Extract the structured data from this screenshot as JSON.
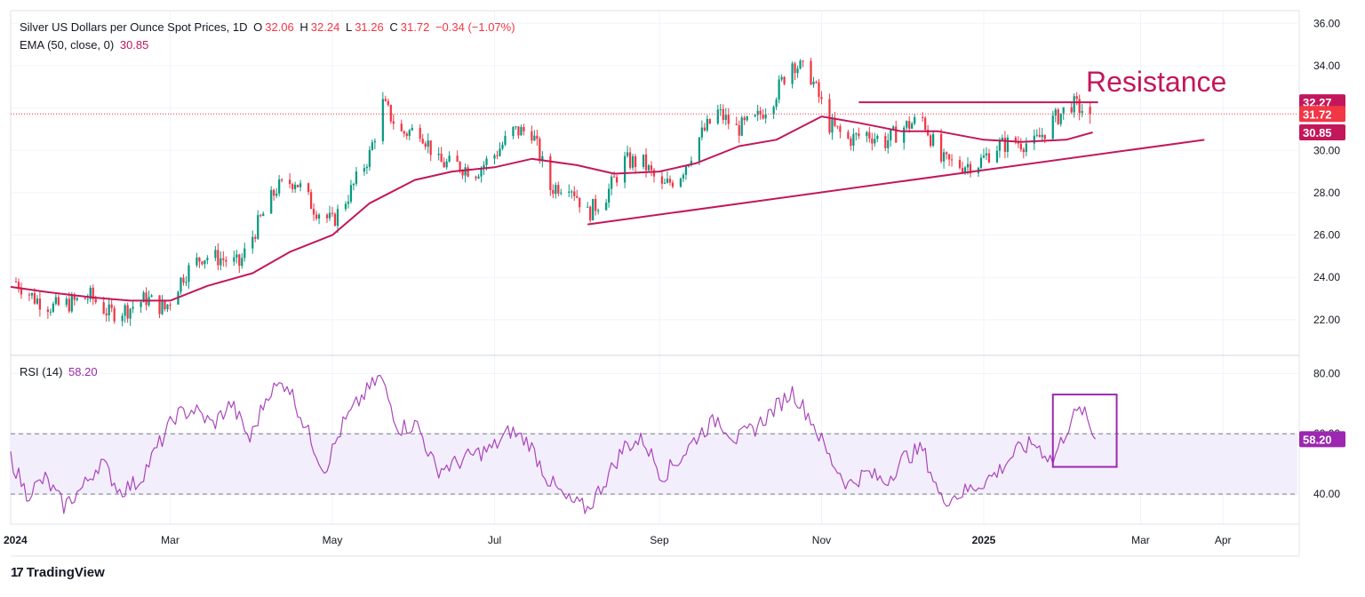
{
  "header": {
    "symbol": "Silver US Dollars per Ounce Spot Prices, 1D",
    "open_label": "O",
    "open": "32.06",
    "high_label": "H",
    "high": "32.24",
    "low_label": "L",
    "low": "31.26",
    "close_label": "C",
    "close": "31.72",
    "change": "−0.34 (−1.07%)",
    "ema_label": "EMA (50, close, 0)",
    "ema_value": "30.85"
  },
  "rsi_legend": {
    "label": "RSI (14)",
    "value": "58.20"
  },
  "annotation": {
    "resistance_label": "Resistance"
  },
  "price_badges": {
    "resistance": "32.27",
    "last": "31.72",
    "ema": "30.85",
    "rsi": "58.20"
  },
  "brand": {
    "name": "TradingView",
    "logo_icon": "tradingview-logo-icon"
  },
  "colors": {
    "up": "#089981",
    "down": "#f23645",
    "ema": "#c2185b",
    "rsi": "#9c27b0",
    "rsi_band": "#f3eefc",
    "grid": "#f0f3fa",
    "axis_text": "#131722"
  },
  "chart_data": [
    {
      "type": "candlestick",
      "title": "Silver US Dollars per Ounce Spot Prices, 1D",
      "ylim": [
        20.4,
        36.6
      ],
      "y_ticks": [
        "22.00",
        "24.00",
        "26.00",
        "28.00",
        "30.00",
        "32.00",
        "34.00",
        "36.00"
      ],
      "x_ticks": [
        "2024",
        "Mar",
        "May",
        "Jul",
        "Sep",
        "Nov",
        "2025",
        "Mar",
        "Apr"
      ],
      "x_tick_dates": [
        "2024-01-01",
        "2024-03-01",
        "2024-05-01",
        "2024-07-01",
        "2024-09-01",
        "2024-11-01",
        "2025-01-01",
        "2025-03-01",
        "2025-04-01"
      ],
      "x_range": [
        "2024-01-01",
        "2025-04-29"
      ],
      "grid": true,
      "series_close": [
        [
          "2024-01-03",
          23.8
        ],
        [
          "2024-01-10",
          23.0
        ],
        [
          "2024-01-17",
          22.6
        ],
        [
          "2024-01-24",
          22.8
        ],
        [
          "2024-01-31",
          23.1
        ],
        [
          "2024-02-07",
          22.3
        ],
        [
          "2024-02-14",
          22.5
        ],
        [
          "2024-02-21",
          23.0
        ],
        [
          "2024-02-28",
          22.5
        ],
        [
          "2024-03-06",
          24.1
        ],
        [
          "2024-03-13",
          25.0
        ],
        [
          "2024-03-20",
          24.9
        ],
        [
          "2024-03-27",
          24.6
        ],
        [
          "2024-04-03",
          26.5
        ],
        [
          "2024-04-10",
          28.2
        ],
        [
          "2024-04-17",
          28.6
        ],
        [
          "2024-04-24",
          27.3
        ],
        [
          "2024-05-01",
          26.6
        ],
        [
          "2024-05-08",
          28.1
        ],
        [
          "2024-05-15",
          29.8
        ],
        [
          "2024-05-20",
          32.2
        ],
        [
          "2024-05-27",
          30.8
        ],
        [
          "2024-06-03",
          31.0
        ],
        [
          "2024-06-10",
          29.4
        ],
        [
          "2024-06-17",
          29.3
        ],
        [
          "2024-06-24",
          29.0
        ],
        [
          "2024-07-01",
          29.8
        ],
        [
          "2024-07-08",
          30.9
        ],
        [
          "2024-07-15",
          30.9
        ],
        [
          "2024-07-22",
          28.2
        ],
        [
          "2024-07-29",
          28.5
        ],
        [
          "2024-08-05",
          27.0
        ],
        [
          "2024-08-12",
          27.9
        ],
        [
          "2024-08-19",
          29.5
        ],
        [
          "2024-08-26",
          29.4
        ],
        [
          "2024-09-02",
          28.2
        ],
        [
          "2024-09-09",
          28.9
        ],
        [
          "2024-09-16",
          30.6
        ],
        [
          "2024-09-23",
          31.8
        ],
        [
          "2024-09-30",
          31.0
        ],
        [
          "2024-10-07",
          31.4
        ],
        [
          "2024-10-14",
          32.5
        ],
        [
          "2024-10-21",
          34.2
        ],
        [
          "2024-10-28",
          33.5
        ],
        [
          "2024-11-04",
          31.2
        ],
        [
          "2024-11-11",
          30.5
        ],
        [
          "2024-11-18",
          30.8
        ],
        [
          "2024-11-25",
          30.4
        ],
        [
          "2024-12-02",
          31.1
        ],
        [
          "2024-12-09",
          31.5
        ],
        [
          "2024-12-16",
          29.5
        ],
        [
          "2024-12-23",
          29.3
        ],
        [
          "2024-12-30",
          29.4
        ],
        [
          "2025-01-06",
          30.2
        ],
        [
          "2025-01-13",
          30.4
        ],
        [
          "2025-01-20",
          30.3
        ],
        [
          "2025-01-27",
          31.4
        ],
        [
          "2025-02-03",
          32.2
        ],
        [
          "2025-02-10",
          31.72
        ]
      ],
      "ema_50": [
        [
          "2024-01-01",
          23.55
        ],
        [
          "2024-01-15",
          23.3
        ],
        [
          "2024-02-01",
          23.05
        ],
        [
          "2024-02-15",
          22.9
        ],
        [
          "2024-03-01",
          22.9
        ],
        [
          "2024-03-15",
          23.6
        ],
        [
          "2024-04-01",
          24.2
        ],
        [
          "2024-04-15",
          25.2
        ],
        [
          "2024-05-01",
          26.0
        ],
        [
          "2024-05-15",
          27.5
        ],
        [
          "2024-06-01",
          28.6
        ],
        [
          "2024-06-15",
          29.0
        ],
        [
          "2024-07-01",
          29.2
        ],
        [
          "2024-07-15",
          29.6
        ],
        [
          "2024-08-01",
          29.3
        ],
        [
          "2024-08-15",
          28.9
        ],
        [
          "2024-09-01",
          29.0
        ],
        [
          "2024-09-15",
          29.4
        ],
        [
          "2024-10-01",
          30.2
        ],
        [
          "2024-10-15",
          30.5
        ],
        [
          "2024-11-01",
          31.6
        ],
        [
          "2024-11-15",
          31.3
        ],
        [
          "2024-12-01",
          30.9
        ],
        [
          "2024-12-15",
          30.9
        ],
        [
          "2025-01-01",
          30.5
        ],
        [
          "2025-01-15",
          30.4
        ],
        [
          "2025-02-01",
          30.5
        ],
        [
          "2025-02-11",
          30.85
        ]
      ],
      "resistance_level": 32.27,
      "resistance_range": [
        "2024-11-15",
        "2025-02-13"
      ],
      "support_trendline": [
        [
          "2024-08-05",
          26.5
        ],
        [
          "2025-03-25",
          30.5
        ]
      ],
      "last_price": 31.72
    },
    {
      "type": "line",
      "title": "RSI (14)",
      "ylim": [
        30,
        86
      ],
      "y_ticks": [
        "40.00",
        "60.00",
        "80.00"
      ],
      "band": [
        40,
        60
      ],
      "rsi": [
        [
          "2024-01-01",
          52
        ],
        [
          "2024-01-07",
          40
        ],
        [
          "2024-01-14",
          45
        ],
        [
          "2024-01-21",
          36
        ],
        [
          "2024-01-28",
          42
        ],
        [
          "2024-02-04",
          51
        ],
        [
          "2024-02-11",
          41
        ],
        [
          "2024-02-18",
          44
        ],
        [
          "2024-02-25",
          55
        ],
        [
          "2024-03-03",
          66
        ],
        [
          "2024-03-10",
          68
        ],
        [
          "2024-03-17",
          63
        ],
        [
          "2024-03-24",
          70
        ],
        [
          "2024-03-31",
          58
        ],
        [
          "2024-04-07",
          74
        ],
        [
          "2024-04-14",
          77
        ],
        [
          "2024-04-21",
          62
        ],
        [
          "2024-04-28",
          48
        ],
        [
          "2024-05-05",
          63
        ],
        [
          "2024-05-12",
          72
        ],
        [
          "2024-05-19",
          79
        ],
        [
          "2024-05-26",
          62
        ],
        [
          "2024-06-02",
          63
        ],
        [
          "2024-06-09",
          48
        ],
        [
          "2024-06-16",
          50
        ],
        [
          "2024-06-23",
          53
        ],
        [
          "2024-06-30",
          55
        ],
        [
          "2024-07-07",
          61
        ],
        [
          "2024-07-14",
          57
        ],
        [
          "2024-07-21",
          45
        ],
        [
          "2024-07-28",
          38
        ],
        [
          "2024-08-05",
          35
        ],
        [
          "2024-08-12",
          45
        ],
        [
          "2024-08-19",
          56
        ],
        [
          "2024-08-26",
          58
        ],
        [
          "2024-09-02",
          46
        ],
        [
          "2024-09-09",
          52
        ],
        [
          "2024-09-16",
          60
        ],
        [
          "2024-09-23",
          65
        ],
        [
          "2024-09-30",
          58
        ],
        [
          "2024-10-07",
          62
        ],
        [
          "2024-10-14",
          68
        ],
        [
          "2024-10-21",
          74
        ],
        [
          "2024-10-28",
          65
        ],
        [
          "2024-11-04",
          52
        ],
        [
          "2024-11-11",
          43
        ],
        [
          "2024-11-18",
          47
        ],
        [
          "2024-11-25",
          44
        ],
        [
          "2024-12-02",
          52
        ],
        [
          "2024-12-09",
          55
        ],
        [
          "2024-12-16",
          38
        ],
        [
          "2024-12-23",
          40
        ],
        [
          "2024-12-30",
          43
        ],
        [
          "2025-01-06",
          47
        ],
        [
          "2025-01-13",
          54
        ],
        [
          "2025-01-20",
          57
        ],
        [
          "2025-01-27",
          51
        ],
        [
          "2025-02-03",
          65
        ],
        [
          "2025-02-07",
          68
        ],
        [
          "2025-02-12",
          58.2
        ]
      ],
      "highlight_box_range": [
        "2025-01-27",
        "2025-02-20"
      ],
      "highlight_box_y": [
        49,
        73
      ],
      "last_value": 58.2
    }
  ]
}
